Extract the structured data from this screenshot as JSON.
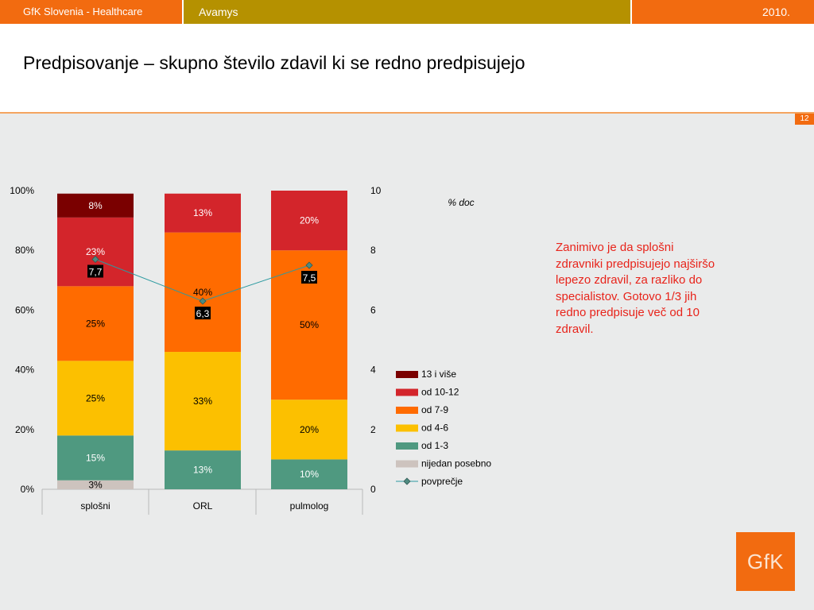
{
  "header": {
    "left_label": "GfK Slovenia - Healthcare",
    "center_label": "Avamys",
    "year": "2010."
  },
  "slide": {
    "title": "Predpisovanje – skupno število zdavil ki se redno predpisujejo",
    "page_number": "12",
    "note": "Zanimivo je da splošni zdravniki predpisujejo najširšo lepezo zdravil, za razliko do specialistov. Gotovo 1/3 jih redno predpisuje več od 10 zdravil.",
    "logo_text": "GfK"
  },
  "colors": {
    "accent_orange": "#f26b10",
    "accent_gold": "#b59100",
    "note_red": "#e8241b"
  },
  "chart_data": {
    "type": "bar",
    "stacked": true,
    "categories": [
      "splošni",
      "ORL",
      "pulmolog"
    ],
    "unit_label": "% doc",
    "left_axis": {
      "ticks": [
        "0%",
        "20%",
        "40%",
        "60%",
        "80%",
        "100%"
      ],
      "range": [
        0,
        100
      ]
    },
    "right_axis": {
      "ticks": [
        "0",
        "2",
        "4",
        "6",
        "8",
        "10"
      ],
      "range": [
        0,
        10
      ]
    },
    "series": [
      {
        "name": "nijedan posebno",
        "color": "#cdc3be",
        "label_color": "#000000",
        "values": [
          3,
          0,
          0
        ],
        "labels": [
          "3%",
          "",
          ""
        ]
      },
      {
        "name": "od 1-3",
        "color": "#4f9980",
        "label_color": "#ffffff",
        "values": [
          15,
          13,
          10
        ],
        "labels": [
          "15%",
          "13%",
          "10%"
        ]
      },
      {
        "name": "od 4-6",
        "color": "#fcc000",
        "label_color": "#000000",
        "values": [
          25,
          33,
          20
        ],
        "labels": [
          "25%",
          "33%",
          "20%"
        ]
      },
      {
        "name": "od 7-9",
        "color": "#ff6b00",
        "label_color": "#000000",
        "values": [
          25,
          40,
          50
        ],
        "labels": [
          "25%",
          "40%",
          "50%"
        ]
      },
      {
        "name": "od 10-12",
        "color": "#d3252b",
        "label_color": "#ffffff",
        "values": [
          23,
          13,
          20
        ],
        "labels": [
          "23%",
          "13%",
          "20%"
        ]
      },
      {
        "name": "13 i više",
        "color": "#7a0000",
        "label_color": "#ffffff",
        "values": [
          8,
          0,
          0
        ],
        "labels": [
          "8%",
          "",
          ""
        ]
      }
    ],
    "average": {
      "name": "povprečje",
      "color": "#2c9aa0",
      "values": [
        7.7,
        6.3,
        7.5
      ],
      "labels": [
        "7,7",
        "6,3",
        "7,5"
      ]
    },
    "legend_order": [
      "13 i više",
      "od 10-12",
      "od 7-9",
      "od 4-6",
      "od 1-3",
      "nijedan posebno",
      "povprečje"
    ],
    "legend_position": "right"
  }
}
